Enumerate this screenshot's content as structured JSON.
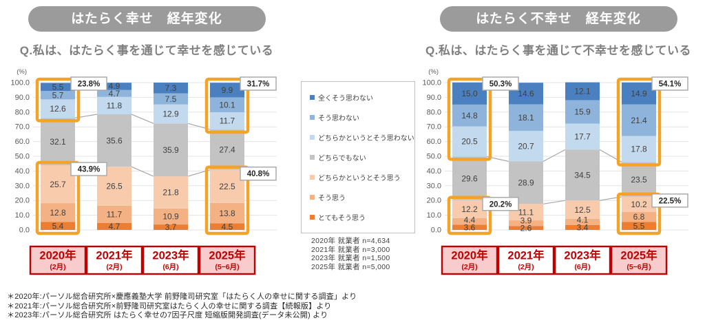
{
  "style": {
    "title_pill_bg": "#9B9B9B",
    "title_pill_text": "#FFFFFF",
    "question_text": "#7F7F7F",
    "grid": "#E3E3E3",
    "axis_label": "#595959",
    "value_label": "#3F3F3F",
    "connector": "#A6A6A6",
    "highlight_box": "#F5A228",
    "callout_border": "#A6A6A6",
    "callout_fill": "#FFFFFF",
    "callout_text": "#262626",
    "year_box_border": "#C00000",
    "year_box_text": "#C00000",
    "year_box_fill_highlight": "#F8CCCC",
    "year_box_fill_normal": "#FFFFFF",
    "legend_border": "#BFBFBF"
  },
  "axis": {
    "unit": "(%)",
    "ylim": [
      0,
      100
    ],
    "ytick_step": 10,
    "yticks": [
      "0.0",
      "10.0",
      "20.0",
      "30.0",
      "40.0",
      "50.0",
      "60.0",
      "70.0",
      "80.0",
      "90.0",
      "100.0"
    ],
    "grid": true
  },
  "categories": [
    {
      "label": "2020年(2月)",
      "year": "2020年",
      "month": "(2月)",
      "highlighted": true
    },
    {
      "label": "2021年(2月)",
      "year": "2021年",
      "month": "(2月)",
      "highlighted": false
    },
    {
      "label": "2023年(6月)",
      "year": "2023年",
      "month": "(6月)",
      "highlighted": false
    },
    {
      "label": "2025年(5−6月)",
      "year": "2025年",
      "month": "(5−6月)",
      "highlighted": true
    }
  ],
  "chart_data": [
    {
      "type": "bar",
      "stacked": true,
      "percent": true,
      "title": "はたらく幸せ　経年変化",
      "question": "Q.私は、はたらく事を通じて幸せを感じている",
      "categories": [
        "2020年(2月)",
        "2021年(2月)",
        "2023年(6月)",
        "2025年(5−6月)"
      ],
      "ylim": [
        0,
        100
      ],
      "stack_order": "bottom-to-top",
      "series": [
        {
          "name": "とてもそう思う",
          "color": "#ED7D31",
          "values": [
            5.4,
            4.7,
            3.7,
            4.5
          ]
        },
        {
          "name": "そう思う",
          "color": "#F4B183",
          "values": [
            12.8,
            11.7,
            10.9,
            13.8
          ]
        },
        {
          "name": "どちらかというとそう思う",
          "color": "#F8CBAD",
          "values": [
            25.7,
            26.5,
            21.8,
            22.5
          ]
        },
        {
          "name": "どちらでもない",
          "color": "#C3C3C3",
          "values": [
            32.1,
            35.6,
            35.9,
            27.4
          ]
        },
        {
          "name": "どちらかというとそう思わない",
          "color": "#C2D9EE",
          "values": [
            12.6,
            11.8,
            12.9,
            11.7
          ]
        },
        {
          "name": "そう思わない",
          "color": "#8EB4DC",
          "values": [
            5.7,
            4.7,
            7.5,
            10.1
          ]
        },
        {
          "name": "全くそう思わない",
          "color": "#4A80C0",
          "values": [
            5.5,
            4.9,
            7.3,
            9.9
          ]
        }
      ],
      "callouts": [
        {
          "bar": 0,
          "edge": "top",
          "label": "23.8%"
        },
        {
          "bar": 0,
          "edge": "bottom",
          "label": "43.9%"
        },
        {
          "bar": 3,
          "edge": "top",
          "label": "31.7%"
        },
        {
          "bar": 3,
          "edge": "bottom",
          "label": "40.8%"
        }
      ],
      "highlighted_bars": [
        0,
        3
      ]
    },
    {
      "type": "bar",
      "stacked": true,
      "percent": true,
      "title": "はたらく不幸せ　経年変化",
      "question": "Q.私は、はたらく事を通じて不幸せを感じている",
      "categories": [
        "2020年(2月)",
        "2021年(2月)",
        "2023年(6月)",
        "2025年(5−6月)"
      ],
      "ylim": [
        0,
        100
      ],
      "stack_order": "bottom-to-top",
      "series": [
        {
          "name": "とてもそう思う",
          "color": "#ED7D31",
          "values": [
            3.6,
            2.6,
            3.4,
            5.5
          ]
        },
        {
          "name": "そう思う",
          "color": "#F4B183",
          "values": [
            4.4,
            3.9,
            4.1,
            6.8
          ]
        },
        {
          "name": "どちらかというとそう思う",
          "color": "#F8CBAD",
          "values": [
            12.2,
            11.1,
            12.5,
            10.2
          ]
        },
        {
          "name": "どちらでもない",
          "color": "#C3C3C3",
          "values": [
            29.6,
            28.9,
            34.5,
            23.5
          ]
        },
        {
          "name": "どちらかというとそう思わない",
          "color": "#C2D9EE",
          "values": [
            20.5,
            20.7,
            17.7,
            17.8
          ]
        },
        {
          "name": "そう思わない",
          "color": "#8EB4DC",
          "values": [
            14.8,
            18.1,
            15.9,
            21.4
          ]
        },
        {
          "name": "全くそう思わない",
          "color": "#4A80C0",
          "values": [
            15.0,
            14.6,
            12.1,
            14.9
          ]
        }
      ],
      "callouts": [
        {
          "bar": 0,
          "edge": "top",
          "label": "50.3%"
        },
        {
          "bar": 0,
          "edge": "bottom",
          "label": "20.2%"
        },
        {
          "bar": 3,
          "edge": "top",
          "label": "54.1%"
        },
        {
          "bar": 3,
          "edge": "bottom",
          "label": "22.5%"
        }
      ],
      "highlighted_bars": [
        0,
        3
      ]
    }
  ],
  "legend": {
    "items": [
      {
        "label": "全くそう思わない",
        "color": "#4A80C0"
      },
      {
        "label": "そう思わない",
        "color": "#8EB4DC"
      },
      {
        "label": "どちらかというとそう思わない",
        "color": "#C2D9EE"
      },
      {
        "label": "どちらでもない",
        "color": "#C3C3C3"
      },
      {
        "label": "どちらかというとそう思う",
        "color": "#F8CBAD"
      },
      {
        "label": "そう思う",
        "color": "#F4B183"
      },
      {
        "label": "とてもそう思う",
        "color": "#ED7D31"
      }
    ]
  },
  "sample_sizes": [
    "2020年 就業者 n=4,634",
    "2021年 就業者 n=3,000",
    "2023年 就業者 n=1,500",
    "2025年 就業者 n=5,000"
  ],
  "footnotes": [
    "＊2020年:パーソル総合研究所×慶應義塾大学 前野隆司研究室「はたらく人の幸せに関する調査」より",
    "＊2021年:パーソル総合研究所×前野隆司研究室はたらく人の幸せに関する調査【続報版】より",
    "＊2023年:パーソル総合研究所 はたらく幸せの7因子尺度 短縮版開発調査(データ未公開) より"
  ]
}
